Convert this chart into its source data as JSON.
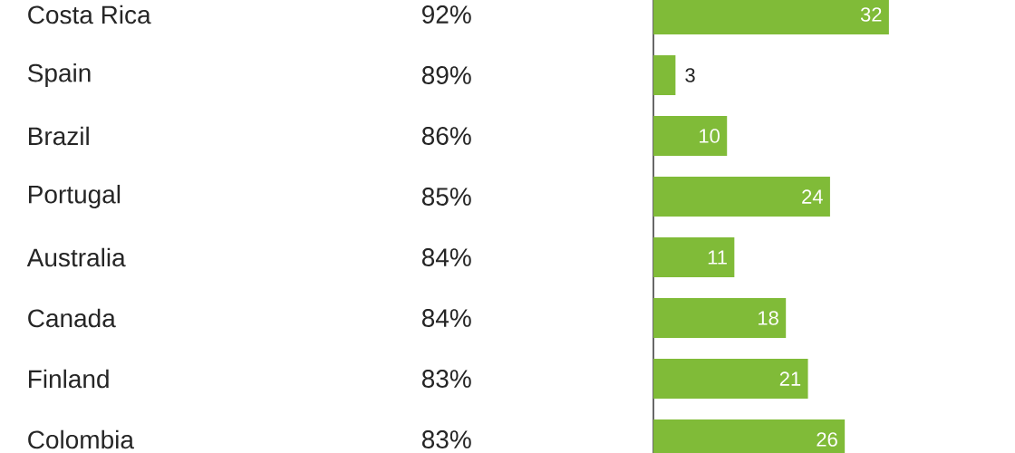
{
  "chart_data": {
    "type": "bar",
    "orientation": "horizontal",
    "categories": [
      "Costa Rica",
      "Spain",
      "Brazil",
      "Portugal",
      "Australia",
      "Canada",
      "Finland",
      "Colombia"
    ],
    "values": [
      32,
      3,
      10,
      24,
      11,
      18,
      21,
      26
    ],
    "color": "#80bb38",
    "data_labels": true,
    "annotations": [
      "92%",
      "89%",
      "86%",
      "85%",
      "84%",
      "84%",
      "83%",
      "83%"
    ]
  }
}
